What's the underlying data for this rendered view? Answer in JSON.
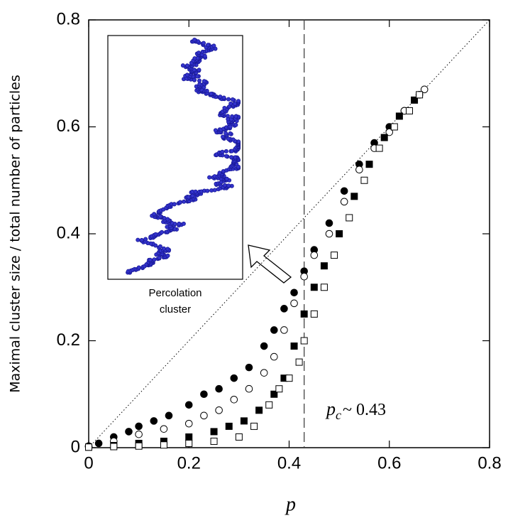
{
  "chart_data": {
    "type": "scatter",
    "x_label": "p",
    "y_label": "Maximal cluster size / total number of particles",
    "xlim": [
      0,
      0.8
    ],
    "ylim": [
      0,
      0.8
    ],
    "xticks": [
      0,
      0.2,
      0.4,
      0.6,
      0.8
    ],
    "yticks": [
      0,
      0.2,
      0.4,
      0.6,
      0.8
    ],
    "diagonal": true,
    "vline": 0.43,
    "annotation": [
      "p",
      "c",
      "~ 0.43"
    ],
    "inset_label": [
      "Percolation",
      "cluster"
    ],
    "series": [
      {
        "marker": "circle",
        "filled": true,
        "color": "#000000",
        "x": [
          0,
          0.02,
          0.05,
          0.08,
          0.1,
          0.13,
          0.16,
          0.2,
          0.23,
          0.26,
          0.29,
          0.32,
          0.35,
          0.37,
          0.39,
          0.41,
          0.43,
          0.45,
          0.48,
          0.51,
          0.54,
          0.57,
          0.6,
          0.63,
          0.66
        ],
        "values": [
          0.003,
          0.008,
          0.02,
          0.03,
          0.04,
          0.05,
          0.06,
          0.08,
          0.1,
          0.11,
          0.13,
          0.15,
          0.19,
          0.22,
          0.26,
          0.29,
          0.33,
          0.37,
          0.42,
          0.48,
          0.53,
          0.57,
          0.6,
          0.63,
          0.66
        ]
      },
      {
        "marker": "circle",
        "filled": false,
        "color": "#000000",
        "x": [
          0,
          0.05,
          0.1,
          0.15,
          0.2,
          0.23,
          0.26,
          0.29,
          0.32,
          0.35,
          0.37,
          0.39,
          0.41,
          0.43,
          0.45,
          0.48,
          0.51,
          0.54,
          0.57,
          0.6,
          0.63,
          0.67
        ],
        "values": [
          0.002,
          0.012,
          0.025,
          0.035,
          0.045,
          0.06,
          0.07,
          0.09,
          0.11,
          0.14,
          0.17,
          0.22,
          0.27,
          0.32,
          0.36,
          0.4,
          0.46,
          0.52,
          0.56,
          0.59,
          0.63,
          0.67
        ]
      },
      {
        "marker": "square",
        "filled": true,
        "color": "#000000",
        "x": [
          0,
          0.05,
          0.1,
          0.15,
          0.2,
          0.25,
          0.28,
          0.31,
          0.34,
          0.37,
          0.39,
          0.41,
          0.43,
          0.45,
          0.47,
          0.5,
          0.53,
          0.56,
          0.59,
          0.62,
          0.65
        ],
        "values": [
          0.001,
          0.004,
          0.008,
          0.012,
          0.02,
          0.03,
          0.04,
          0.05,
          0.07,
          0.1,
          0.13,
          0.19,
          0.25,
          0.3,
          0.34,
          0.4,
          0.47,
          0.53,
          0.58,
          0.62,
          0.65
        ]
      },
      {
        "marker": "square",
        "filled": false,
        "color": "#000000",
        "x": [
          0,
          0.05,
          0.1,
          0.15,
          0.2,
          0.25,
          0.3,
          0.33,
          0.36,
          0.38,
          0.4,
          0.42,
          0.43,
          0.45,
          0.47,
          0.49,
          0.52,
          0.55,
          0.58,
          0.61,
          0.64,
          0.66
        ],
        "values": [
          0.001,
          0.002,
          0.003,
          0.005,
          0.008,
          0.012,
          0.02,
          0.04,
          0.08,
          0.11,
          0.13,
          0.16,
          0.2,
          0.25,
          0.3,
          0.36,
          0.43,
          0.5,
          0.56,
          0.6,
          0.63,
          0.66
        ]
      }
    ]
  }
}
